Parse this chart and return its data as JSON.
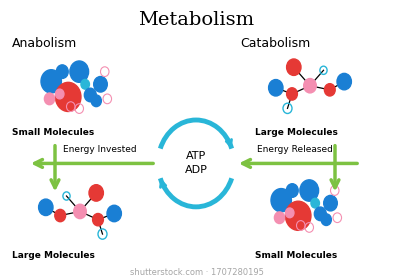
{
  "title": "Metabolism",
  "title_fontsize": 14,
  "background_color": "#ffffff",
  "circle_color": "#29b6d8",
  "circle_linewidth": 3.5,
  "atp_adp_text": "ATP\nADP",
  "atp_adp_fontsize": 8,
  "anabolism_label": "Anabolism",
  "catabolism_label": "Catabolism",
  "small_molecules_label": "Small Molecules",
  "large_molecules_label": "Large Molecules",
  "energy_invested_label": "Energy Invested",
  "energy_released_label": "Energy Released",
  "arrow_color": "#7dc242",
  "label_fontsize": 6.5,
  "section_label_fontsize": 9,
  "watermark": "shutterstock.com · 1707280195",
  "watermark_fontsize": 6,
  "blue_dark": "#1a7fd4",
  "blue_light": "#29b6d8",
  "red_color": "#e53935",
  "pink_color": "#f48fb1",
  "pink_open": "#f48fb1"
}
